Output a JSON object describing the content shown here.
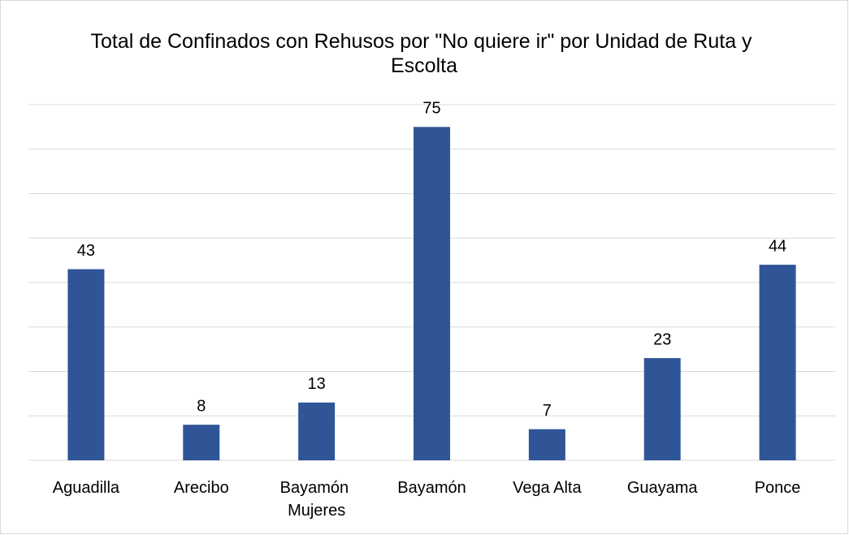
{
  "chart_data": {
    "type": "bar",
    "title": "Total de Confinados con Rehusos por \"No quiere ir\" por Unidad de Ruta y Escolta",
    "categories": [
      "Aguadilla",
      "Arecibo",
      "Bayamón Mujeres",
      "Bayamón",
      "Vega Alta",
      "Guayama",
      "Ponce"
    ],
    "values": [
      43,
      8,
      13,
      75,
      7,
      23,
      44
    ],
    "color": "#2f5597",
    "ylim": [
      0,
      80
    ],
    "yticks": [
      0,
      10,
      20,
      30,
      40,
      50,
      60,
      70,
      80
    ],
    "grid": true
  }
}
